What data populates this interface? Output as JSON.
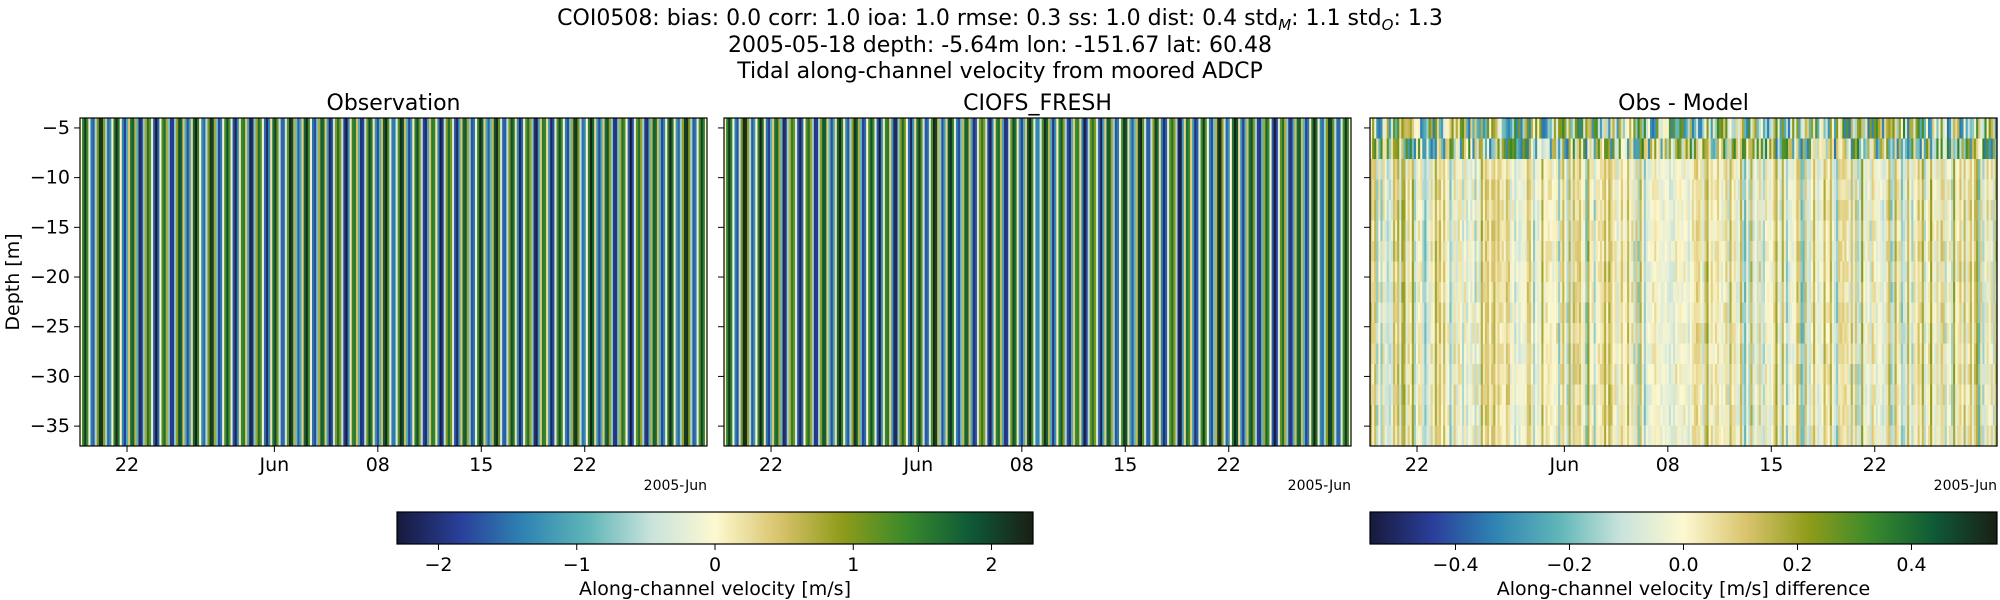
{
  "header": {
    "line1_parts": [
      "COI0508: bias: 0.0  corr: 1.0  ioa: 1.0  rmse: 0.3  ss: 1.0  dist: 0.4  std",
      "M",
      ": 1.1  std",
      "O",
      ": 1.3"
    ],
    "line2": "2005-05-18 depth: -5.64m lon: -151.67 lat: 60.48",
    "line3": "Tidal along-channel velocity from moored ADCP"
  },
  "chart_data": [
    {
      "type": "heatmap",
      "title": "Observation",
      "ylabel": "Depth [m]",
      "yticks": [
        -5,
        -10,
        -15,
        -20,
        -25,
        -30,
        -35
      ],
      "ylim": [
        -37,
        -4
      ],
      "xticks": [
        "22",
        "Jun",
        "08",
        "15",
        "22"
      ],
      "xoffset_label": "2005-Jun",
      "value_range": [
        -2.3,
        2.3
      ],
      "pattern": "vertical tidal stripes, nearly uniform with depth"
    },
    {
      "type": "heatmap",
      "title": "CIOFS_FRESH",
      "yticks": [
        -5,
        -10,
        -15,
        -20,
        -25,
        -30,
        -35
      ],
      "ylim": [
        -37,
        -4
      ],
      "xticks": [
        "22",
        "Jun",
        "08",
        "15",
        "22"
      ],
      "xoffset_label": "2005-Jun",
      "value_range": [
        -2.3,
        2.3
      ],
      "pattern": "vertical tidal stripes, nearly uniform with depth"
    },
    {
      "type": "heatmap",
      "title": "Obs - Model",
      "yticks": [
        -5,
        -10,
        -15,
        -20,
        -25,
        -30,
        -35
      ],
      "ylim": [
        -37,
        -4
      ],
      "xticks": [
        "22",
        "Jun",
        "08",
        "15",
        "22"
      ],
      "xoffset_label": "2005-Jun",
      "value_range": [
        -0.55,
        0.55
      ],
      "pattern": "noisy vertical stripes with near-surface band above about -7 m"
    }
  ],
  "colorbars": [
    {
      "label": "Along-channel velocity [m/s]",
      "ticks": [
        "−2",
        "−1",
        "0",
        "1",
        "2"
      ],
      "tick_values": [
        -2,
        -1,
        0,
        1,
        2
      ],
      "range": [
        -2.3,
        2.3
      ]
    },
    {
      "label": "Along-channel velocity [m/s] difference",
      "ticks": [
        "−0.4",
        "−0.2",
        "0.0",
        "0.2",
        "0.4"
      ],
      "tick_values": [
        -0.4,
        -0.2,
        0.0,
        0.2,
        0.4
      ],
      "range": [
        -0.55,
        0.55
      ]
    }
  ],
  "colormap": [
    "#161a3c",
    "#2a3f9a",
    "#2f84b3",
    "#5fb5b7",
    "#c9e3dc",
    "#fdf8d0",
    "#d9c46d",
    "#8f9b1a",
    "#3a8a2c",
    "#0e5a36",
    "#1a1f15"
  ],
  "ytick_labels": [
    "−5",
    "−10",
    "−15",
    "−20",
    "−25",
    "−30",
    "−35"
  ]
}
